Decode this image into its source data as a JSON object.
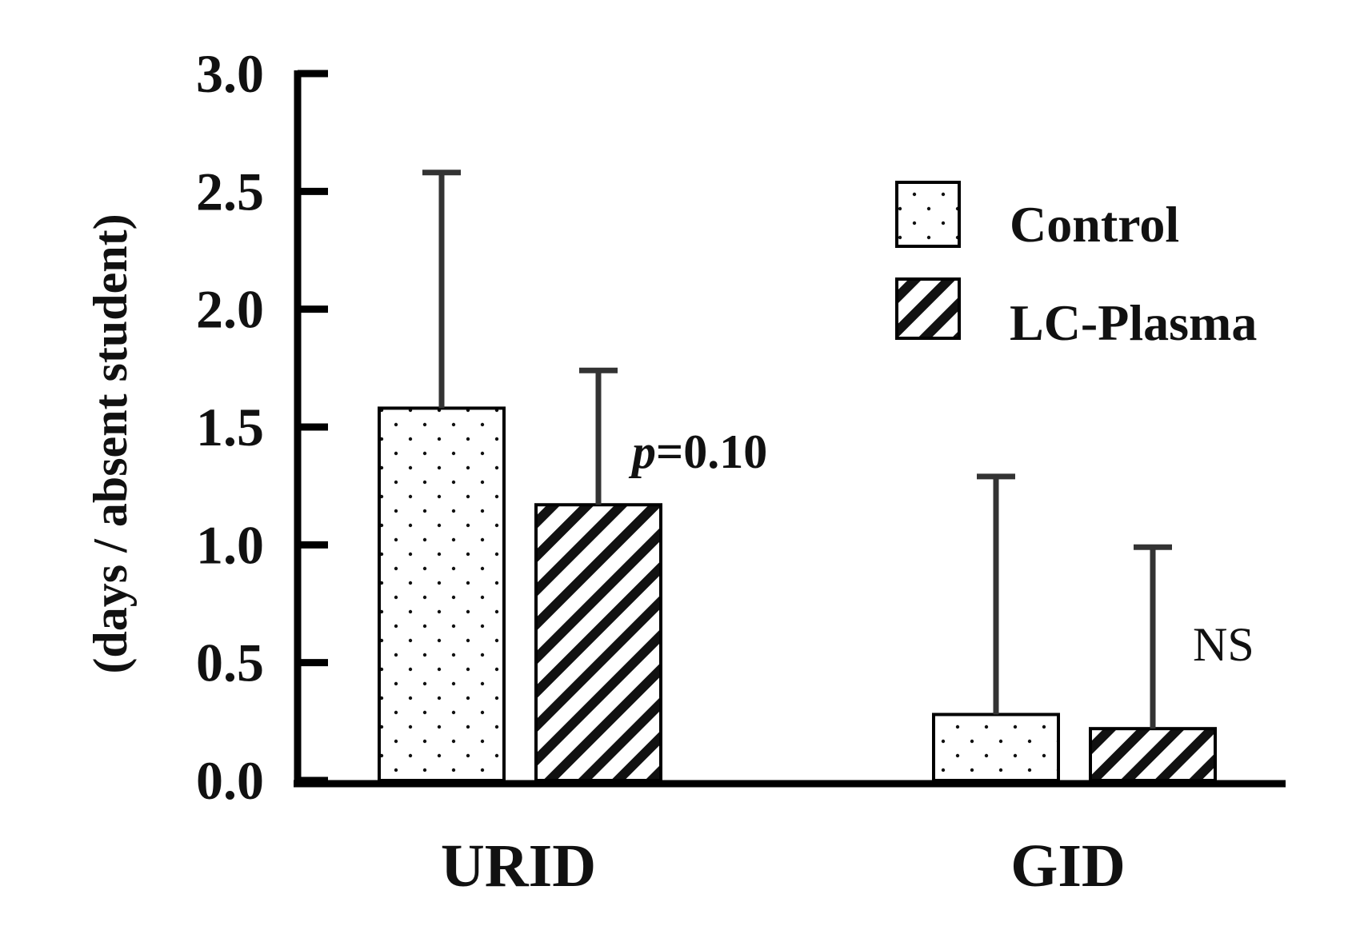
{
  "chart_data": {
    "type": "bar",
    "categories": [
      "URID",
      "GID"
    ],
    "series": [
      {
        "name": "Control",
        "pattern": "dots",
        "values": [
          1.58,
          0.28
        ],
        "error_upper": [
          2.58,
          1.29
        ]
      },
      {
        "name": "LC-Plasma",
        "pattern": "stripes",
        "values": [
          1.17,
          0.22
        ],
        "error_upper": [
          1.74,
          0.99
        ]
      }
    ],
    "ylabel": "(days / absent student)",
    "xlabel": "",
    "ylim": [
      0,
      3.0
    ],
    "yticks": [
      "0.0",
      "0.5",
      "1.0",
      "1.5",
      "2.0",
      "2.5",
      "3.0"
    ],
    "legend_position": "top-right",
    "grid": false,
    "annotations": [
      {
        "category": "URID",
        "italic_part": "p",
        "text": "=0.10"
      },
      {
        "category": "GID",
        "text": "NS"
      }
    ],
    "colors": {
      "axis": "#000000",
      "bar_fill": "#ffffff",
      "error_bar": "#333333"
    }
  }
}
